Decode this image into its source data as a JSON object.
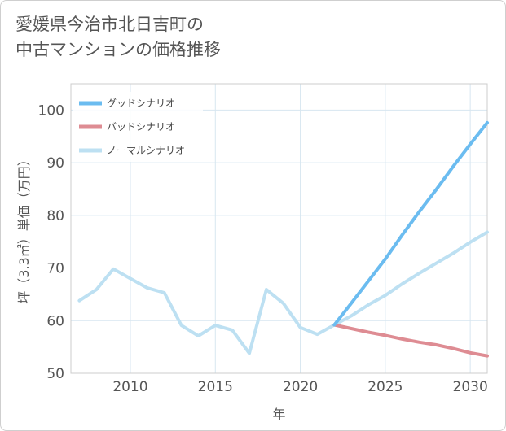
{
  "title": "愛媛県今治市北日吉町の\n中古マンションの価格推移",
  "chart_data": {
    "type": "line",
    "xlabel": "年",
    "ylabel": "坪（3.3㎡）単価（万円）",
    "xlim": [
      2006.5,
      2031
    ],
    "ylim": [
      50,
      105
    ],
    "x_ticks": [
      2010,
      2015,
      2020,
      2025,
      2030
    ],
    "y_ticks": [
      50,
      60,
      70,
      80,
      90,
      100
    ],
    "grid": true,
    "legend_position": "top-left",
    "series": [
      {
        "name": "グッドシナリオ",
        "color": "#6bbcf0",
        "x": [
          2022,
          2023,
          2024,
          2025,
          2026,
          2027,
          2028,
          2029,
          2030,
          2031
        ],
        "values": [
          59.2,
          63.3,
          67.5,
          71.7,
          76.3,
          80.7,
          84.9,
          89.3,
          93.5,
          97.6
        ]
      },
      {
        "name": "バッドシナリオ",
        "color": "#de8c93",
        "x": [
          2022,
          2023,
          2024,
          2025,
          2026,
          2027,
          2028,
          2029,
          2030,
          2031
        ],
        "values": [
          59.2,
          58.5,
          57.8,
          57.2,
          56.5,
          55.9,
          55.4,
          54.7,
          53.9,
          53.3
        ]
      },
      {
        "name": "ノーマルシナリオ",
        "color": "#bde0f2",
        "x": [
          2007,
          2008,
          2009,
          2010,
          2011,
          2012,
          2013,
          2014,
          2015,
          2016,
          2017,
          2018,
          2019,
          2020,
          2021,
          2022,
          2023,
          2024,
          2025,
          2026,
          2027,
          2028,
          2029,
          2030,
          2031
        ],
        "values": [
          63.8,
          65.9,
          69.8,
          68.0,
          66.2,
          65.3,
          59.1,
          57.1,
          59.1,
          58.2,
          53.8,
          65.9,
          63.3,
          58.7,
          57.4,
          59.2,
          60.9,
          63.0,
          64.8,
          67.0,
          69.0,
          70.9,
          72.8,
          74.9,
          76.8
        ]
      }
    ]
  }
}
